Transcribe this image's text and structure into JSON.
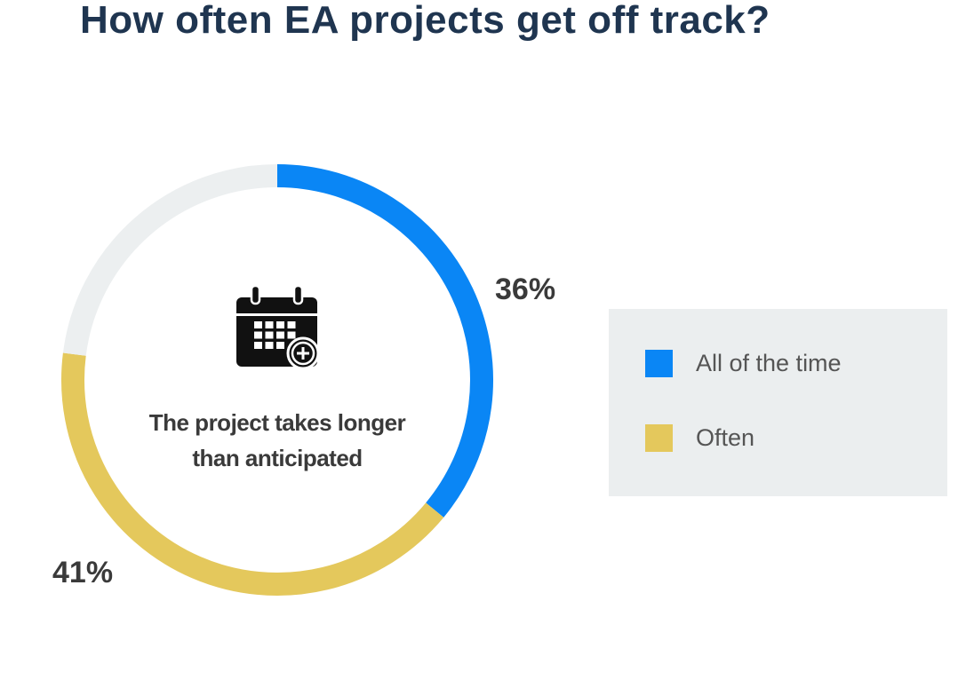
{
  "chart_data": {
    "type": "pie",
    "variant": "donut",
    "title": "How often EA projects get off track?",
    "center_label": "The project takes longer than anticipated",
    "center_label_lines": [
      "The project takes longer",
      "than anticipated"
    ],
    "center_icon": "calendar-plus-icon",
    "series": [
      {
        "name": "All of the time",
        "value": 36,
        "label": "36%",
        "color": "#0a86f5"
      },
      {
        "name": "Often",
        "value": 41,
        "label": "41%",
        "color": "#e4c85c"
      },
      {
        "value": 23,
        "color": "#eceff0"
      }
    ],
    "legend_position": "right"
  }
}
